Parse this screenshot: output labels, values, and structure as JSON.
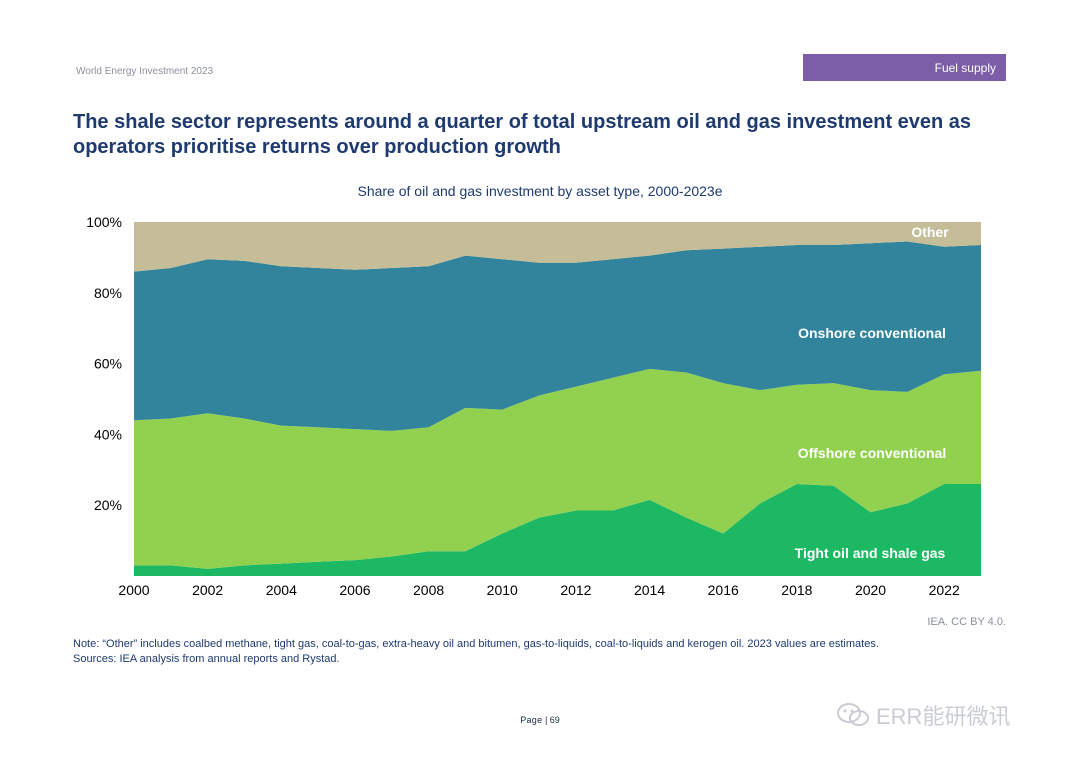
{
  "header": {
    "report": "World Energy Investment 2023",
    "section": "Fuel supply"
  },
  "headline": "The shale sector represents around a quarter of total upstream oil and gas investment even as operators prioritise returns over production growth",
  "chart_data": {
    "type": "area",
    "stacked": true,
    "title": "Share of oil and gas investment by asset type, 2000-2023e",
    "x": [
      2000,
      2001,
      2002,
      2003,
      2004,
      2005,
      2006,
      2007,
      2008,
      2009,
      2010,
      2011,
      2012,
      2013,
      2014,
      2015,
      2016,
      2017,
      2018,
      2019,
      2020,
      2021,
      2022,
      2023
    ],
    "x_ticks": [
      "2000",
      "2002",
      "2004",
      "2006",
      "2008",
      "2010",
      "2012",
      "2014",
      "2016",
      "2018",
      "2020",
      "2022"
    ],
    "ylim": [
      0,
      100
    ],
    "y_ticks": [
      "20%",
      "40%",
      "60%",
      "80%",
      "100%"
    ],
    "y_tick_values": [
      20,
      40,
      60,
      80,
      100
    ],
    "series": [
      {
        "name": "Tight oil and shale gas",
        "color": "#1db863",
        "values": [
          3,
          3,
          2,
          3,
          3.5,
          4,
          4.5,
          5.5,
          7,
          7,
          12,
          16.5,
          18.5,
          18.5,
          21.5,
          16.5,
          12,
          20.5,
          26,
          25.5,
          18,
          20.5,
          26,
          26
        ]
      },
      {
        "name": "Offshore conventional",
        "color": "#92d050",
        "values": [
          41,
          41.5,
          44,
          41.5,
          39,
          38,
          37,
          35.5,
          35,
          40.5,
          35,
          34.5,
          35,
          37.5,
          37,
          41,
          42.5,
          32,
          28,
          29,
          34.5,
          31.5,
          31,
          32
        ]
      },
      {
        "name": "Onshore conventional",
        "color": "#31849b",
        "values": [
          42,
          42.5,
          43.5,
          44.5,
          45,
          45,
          45,
          46,
          45.5,
          43,
          42.5,
          37.5,
          35,
          33.5,
          32,
          34.5,
          38,
          40.5,
          39.5,
          39,
          41.5,
          42.5,
          36,
          35.5
        ]
      },
      {
        "name": "Other",
        "color": "#c4bd97",
        "values": [
          14,
          13,
          10.5,
          11,
          12.5,
          13,
          13.5,
          13,
          12.5,
          9.5,
          10.5,
          11.5,
          11.5,
          10.5,
          9.5,
          8,
          7.5,
          7,
          6.5,
          6.5,
          6,
          5.5,
          7,
          6.5
        ]
      }
    ],
    "grid": false,
    "legend": "inline labels"
  },
  "credit": "IEA. CC BY 4.0.",
  "note": "Note: “Other” includes coalbed methane, tight gas, coal-to-gas, extra-heavy oil and bitumen, gas-to-liquids, coal-to-liquids and kerogen oil. 2023 values are estimates.",
  "sources": "Sources: IEA analysis from annual reports and Rystad.",
  "page": {
    "label": "Page",
    "number": "69"
  },
  "watermark": {
    "text": "ERR能研微讯",
    "icon": "wechat-icon"
  }
}
